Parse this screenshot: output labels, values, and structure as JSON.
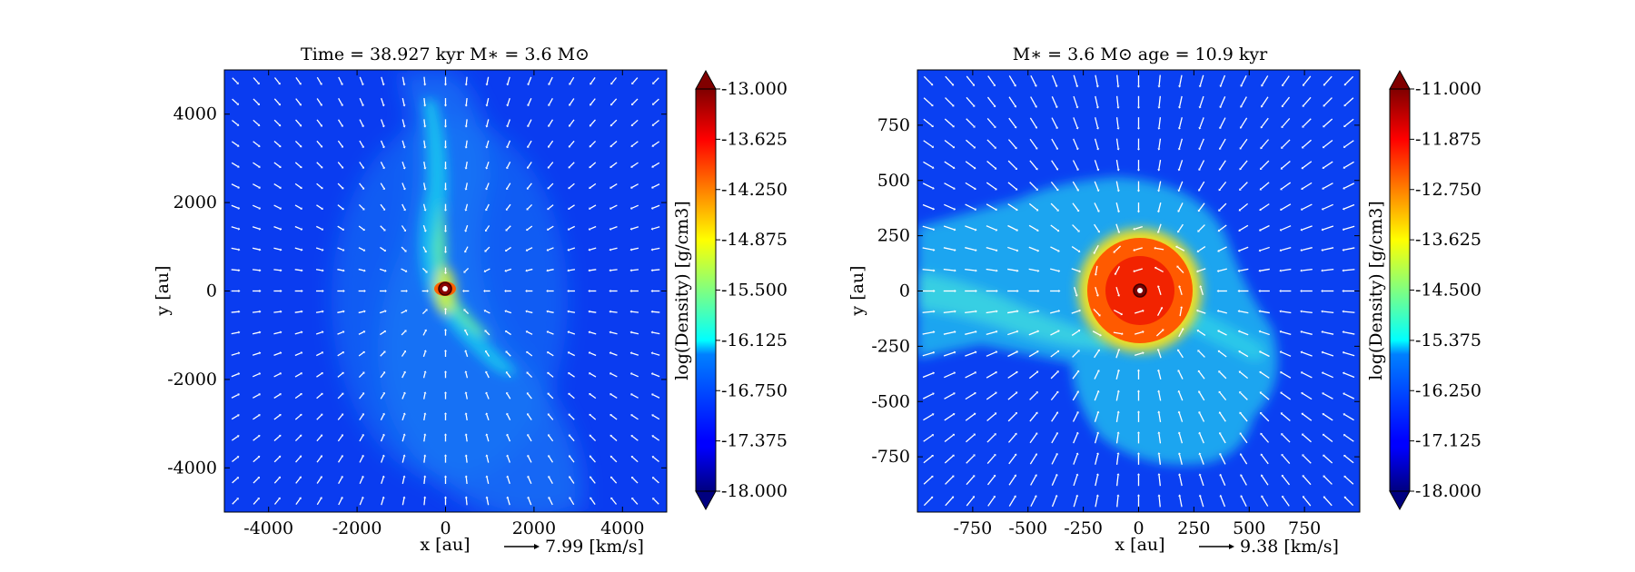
{
  "chart_data": [
    {
      "type": "heatmap",
      "title": "Time = 38.927 kyr    M$_*$ = 3.6 M$_\\odot$",
      "title_text": "Time = 38.927 kyr    M∗ = 3.6 M⊙",
      "xlabel": "x [au]",
      "ylabel": "y [au]",
      "xlim": [
        -5000,
        5000
      ],
      "ylim": [
        -5000,
        5000
      ],
      "xticks": [
        -4000,
        -2000,
        0,
        2000,
        4000
      ],
      "xtick_labels": [
        "-4000",
        "-2000",
        "0",
        "2000",
        "4000"
      ],
      "yticks": [
        -4000,
        -2000,
        0,
        2000,
        4000
      ],
      "ytick_labels": [
        "-4000",
        "-2000",
        "0",
        "2000",
        "4000"
      ],
      "quiver_key_label": "7.99 [km/s]",
      "colorbar": {
        "label": "log(Density) [g/cm3]",
        "range": [
          -18.0,
          -13.0
        ],
        "ticks": [
          -13.0,
          -13.625,
          -14.25,
          -14.875,
          -15.5,
          -16.125,
          -16.75,
          -17.375,
          -18.0
        ],
        "tick_labels": [
          "-13.000",
          "-13.625",
          "-14.250",
          "-14.875",
          "-15.500",
          "-16.125",
          "-16.750",
          "-17.375",
          "-18.000"
        ],
        "extend": "both",
        "colormap": "jet"
      },
      "features": {
        "background_log_density": -17.6,
        "filament": "diagonal dense filament from top (~0,4000) through center to bottom-right (~1500,-2000)",
        "center_log_density": -13.0,
        "sink_position": [
          0,
          0
        ]
      },
      "grid": false
    },
    {
      "type": "heatmap",
      "title": "M$_*$ = 3.6 M$_\\odot$        age = 10.9 kyr",
      "title_text": "M∗ = 3.6 M⊙          age = 10.9 kyr",
      "xlabel": "x [au]",
      "ylabel": "y [au]",
      "xlim": [
        -1000,
        1000
      ],
      "ylim": [
        -1000,
        1000
      ],
      "xticks": [
        -750,
        -500,
        -250,
        0,
        250,
        500,
        750
      ],
      "xtick_labels": [
        "-750",
        "-500",
        "-250",
        "0",
        "250",
        "500",
        "750"
      ],
      "yticks": [
        -750,
        -500,
        -250,
        0,
        250,
        500,
        750
      ],
      "ytick_labels": [
        "-750",
        "-500",
        "-250",
        "0",
        "250",
        "500",
        "750"
      ],
      "quiver_key_label": "9.38 [km/s]",
      "colorbar": {
        "label": "log(Density) [g/cm3]",
        "range": [
          -18.0,
          -11.0
        ],
        "ticks": [
          -11.0,
          -11.875,
          -12.75,
          -13.625,
          -14.5,
          -15.375,
          -16.25,
          -17.125,
          -18.0
        ],
        "tick_labels": [
          "-11.000",
          "-11.875",
          "-12.750",
          "-13.625",
          "-14.500",
          "-15.375",
          "-16.250",
          "-17.125",
          "-18.000"
        ],
        "extend": "both",
        "colormap": "jet"
      },
      "features": {
        "background_log_density": -17.3,
        "disk_radius_au": 230,
        "disk_log_density": -12.0,
        "envelope": "cyan envelope roughly -600..600 au with spiral arms",
        "sink_position": [
          0,
          0
        ]
      },
      "grid": false
    }
  ]
}
